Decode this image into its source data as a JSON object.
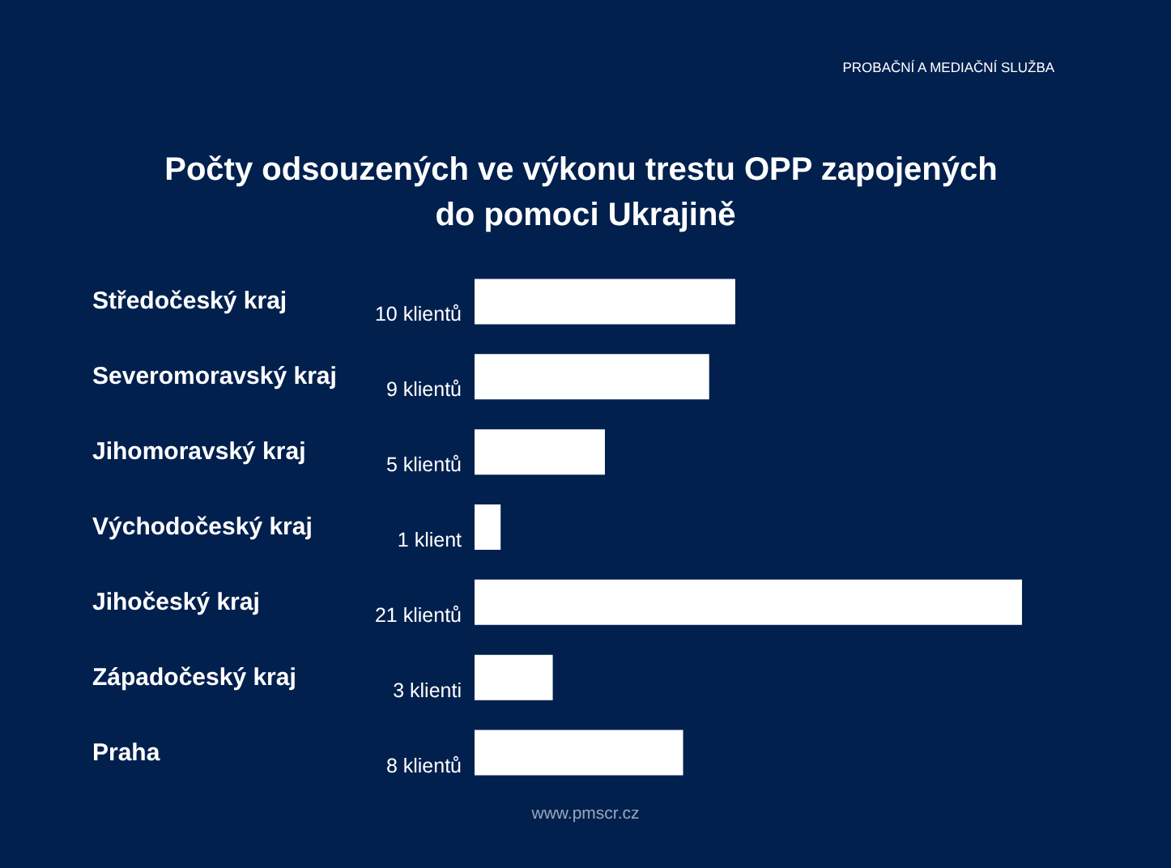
{
  "chart_data": {
    "type": "bar",
    "orientation": "horizontal",
    "title": "Počty odsouzených ve výkonu trestu OPP zapojených do pomoci Ukrajině",
    "categories": [
      "Středočeský kraj",
      "Severomoravský kraj",
      "Jihomoravský kraj",
      "Východočeský kraj",
      "Jihočeský kraj",
      "Západočeský kraj",
      "Praha"
    ],
    "values": [
      10,
      9,
      5,
      1,
      21,
      3,
      8
    ],
    "value_labels": [
      "10 klientů",
      "9 klientů",
      "5 klientů",
      "1 klient",
      "21 klientů",
      "3 klienti",
      "8 klientů"
    ],
    "color": "#ffffff",
    "tick_labels": "y",
    "annotations": [
      "PROBAČNÍ A MEDIAČNÍ SLUŽBA",
      "www.pmscr.cz"
    ]
  }
}
